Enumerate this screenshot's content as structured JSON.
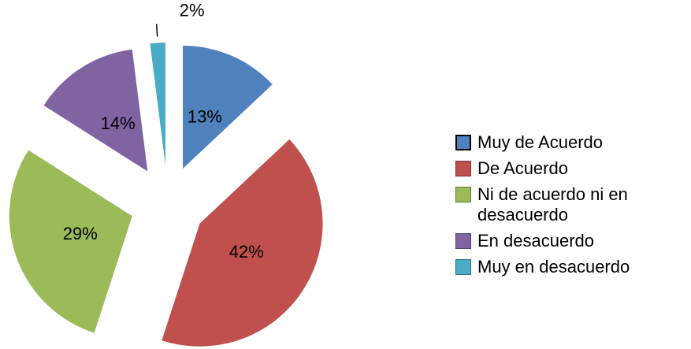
{
  "chart_data": {
    "type": "pie",
    "categories": [
      "Muy de Acuerdo",
      "De Acuerdo",
      "Ni de acuerdo ni en desacuerdo",
      "En desacuerdo",
      "Muy en desacuerdo"
    ],
    "values": [
      13,
      42,
      29,
      14,
      2
    ],
    "value_labels": [
      "13%",
      "42%",
      "29%",
      "14%",
      "2%"
    ],
    "colors": [
      "#4f81bd",
      "#c0504d",
      "#9bbb59",
      "#8064a2",
      "#4bacc6"
    ],
    "exploded": true,
    "legend": "right"
  }
}
